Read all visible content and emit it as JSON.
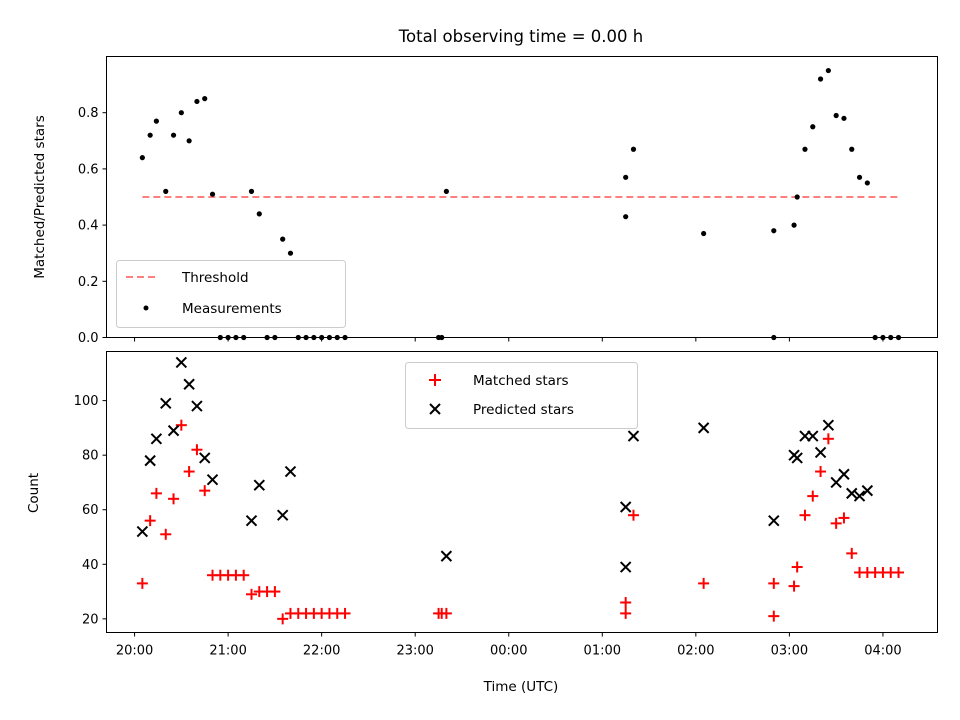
{
  "figure": {
    "title": "Total observing time = 0.00 h"
  },
  "chart_data": [
    {
      "type": "scatter",
      "ylabel": "Matched/Predicted stars",
      "xlabel": "",
      "xlim": [
        "19:42",
        "04:35"
      ],
      "ylim": [
        0,
        1.0
      ],
      "yticks": [
        0.0,
        0.2,
        0.4,
        0.6,
        0.8
      ],
      "xticks": [
        "20:00",
        "21:00",
        "22:00",
        "23:00",
        "00:00",
        "01:00",
        "02:00",
        "03:00",
        "04:00"
      ],
      "grid": false,
      "legend_position": "lower-left",
      "threshold": {
        "name": "Threshold",
        "value": 0.5,
        "x_range": [
          "20:05",
          "04:10"
        ],
        "color": "#ff7f7f",
        "style": "dashed"
      },
      "series": [
        {
          "name": "Measurements",
          "marker": "dot",
          "color": "#000000",
          "points": [
            [
              "20:05",
              0.64
            ],
            [
              "20:10",
              0.72
            ],
            [
              "20:14",
              0.77
            ],
            [
              "20:20",
              0.52
            ],
            [
              "20:25",
              0.72
            ],
            [
              "20:30",
              0.8
            ],
            [
              "20:35",
              0.7
            ],
            [
              "20:40",
              0.84
            ],
            [
              "20:45",
              0.85
            ],
            [
              "20:50",
              0.51
            ],
            [
              "20:55",
              0.0
            ],
            [
              "21:00",
              0.0
            ],
            [
              "21:05",
              0.0
            ],
            [
              "21:10",
              0.0
            ],
            [
              "21:15",
              0.52
            ],
            [
              "21:20",
              0.44
            ],
            [
              "21:25",
              0.0
            ],
            [
              "21:30",
              0.0
            ],
            [
              "21:35",
              0.35
            ],
            [
              "21:40",
              0.3
            ],
            [
              "21:45",
              0.0
            ],
            [
              "21:50",
              0.0
            ],
            [
              "21:55",
              0.0
            ],
            [
              "22:00",
              0.0
            ],
            [
              "22:05",
              0.0
            ],
            [
              "22:10",
              0.0
            ],
            [
              "22:15",
              0.0
            ],
            [
              "23:15",
              0.0
            ],
            [
              "23:17",
              0.0
            ],
            [
              "23:20",
              0.52
            ],
            [
              "01:15",
              0.57
            ],
            [
              "01:15",
              0.43
            ],
            [
              "01:20",
              0.67
            ],
            [
              "02:05",
              0.37
            ],
            [
              "02:50",
              0.38
            ],
            [
              "02:50",
              0.0
            ],
            [
              "03:03",
              0.4
            ],
            [
              "03:05",
              0.5
            ],
            [
              "03:10",
              0.67
            ],
            [
              "03:15",
              0.75
            ],
            [
              "03:20",
              0.92
            ],
            [
              "03:25",
              0.95
            ],
            [
              "03:30",
              0.79
            ],
            [
              "03:35",
              0.78
            ],
            [
              "03:40",
              0.67
            ],
            [
              "03:45",
              0.57
            ],
            [
              "03:50",
              0.55
            ],
            [
              "03:55",
              0.0
            ],
            [
              "04:00",
              0.0
            ],
            [
              "04:05",
              0.0
            ],
            [
              "04:10",
              0.0
            ]
          ]
        }
      ]
    },
    {
      "type": "scatter",
      "ylabel": "Count",
      "xlabel": "Time (UTC)",
      "xlim": [
        "19:42",
        "04:35"
      ],
      "ylim": [
        15,
        118
      ],
      "yticks": [
        20,
        40,
        60,
        80,
        100
      ],
      "xticks": [
        "20:00",
        "21:00",
        "22:00",
        "23:00",
        "00:00",
        "01:00",
        "02:00",
        "03:00",
        "04:00"
      ],
      "grid": false,
      "legend_position": "top-center",
      "series": [
        {
          "name": "Matched stars",
          "marker": "plus",
          "color": "#ff0000",
          "points": [
            [
              "20:05",
              33
            ],
            [
              "20:10",
              56
            ],
            [
              "20:14",
              66
            ],
            [
              "20:20",
              51
            ],
            [
              "20:25",
              64
            ],
            [
              "20:30",
              91
            ],
            [
              "20:35",
              74
            ],
            [
              "20:40",
              82
            ],
            [
              "20:45",
              67
            ],
            [
              "20:50",
              36
            ],
            [
              "20:55",
              36
            ],
            [
              "21:00",
              36
            ],
            [
              "21:05",
              36
            ],
            [
              "21:10",
              36
            ],
            [
              "21:15",
              29
            ],
            [
              "21:20",
              30
            ],
            [
              "21:25",
              30
            ],
            [
              "21:30",
              30
            ],
            [
              "21:35",
              20
            ],
            [
              "21:40",
              22
            ],
            [
              "21:45",
              22
            ],
            [
              "21:50",
              22
            ],
            [
              "21:55",
              22
            ],
            [
              "22:00",
              22
            ],
            [
              "22:05",
              22
            ],
            [
              "22:10",
              22
            ],
            [
              "22:15",
              22
            ],
            [
              "23:15",
              22
            ],
            [
              "23:17",
              22
            ],
            [
              "23:20",
              22
            ],
            [
              "01:15",
              26
            ],
            [
              "01:15",
              22
            ],
            [
              "01:20",
              58
            ],
            [
              "02:05",
              33
            ],
            [
              "02:50",
              33
            ],
            [
              "02:50",
              21
            ],
            [
              "03:03",
              32
            ],
            [
              "03:05",
              39
            ],
            [
              "03:10",
              58
            ],
            [
              "03:15",
              65
            ],
            [
              "03:20",
              74
            ],
            [
              "03:25",
              86
            ],
            [
              "03:30",
              55
            ],
            [
              "03:35",
              57
            ],
            [
              "03:40",
              44
            ],
            [
              "03:45",
              37
            ],
            [
              "03:50",
              37
            ],
            [
              "03:55",
              37
            ],
            [
              "04:00",
              37
            ],
            [
              "04:05",
              37
            ],
            [
              "04:10",
              37
            ]
          ]
        },
        {
          "name": "Predicted stars",
          "marker": "x",
          "color": "#000000",
          "points": [
            [
              "20:05",
              52
            ],
            [
              "20:10",
              78
            ],
            [
              "20:14",
              86
            ],
            [
              "20:20",
              99
            ],
            [
              "20:25",
              89
            ],
            [
              "20:30",
              114
            ],
            [
              "20:35",
              106
            ],
            [
              "20:40",
              98
            ],
            [
              "20:45",
              79
            ],
            [
              "20:50",
              71
            ],
            [
              "21:15",
              56
            ],
            [
              "21:20",
              69
            ],
            [
              "21:35",
              58
            ],
            [
              "21:40",
              74
            ],
            [
              "23:20",
              43
            ],
            [
              "01:15",
              61
            ],
            [
              "01:15",
              39
            ],
            [
              "01:20",
              87
            ],
            [
              "02:05",
              90
            ],
            [
              "02:50",
              56
            ],
            [
              "03:03",
              80
            ],
            [
              "03:05",
              79
            ],
            [
              "03:10",
              87
            ],
            [
              "03:15",
              87
            ],
            [
              "03:20",
              81
            ],
            [
              "03:25",
              91
            ],
            [
              "03:30",
              70
            ],
            [
              "03:35",
              73
            ],
            [
              "03:40",
              66
            ],
            [
              "03:45",
              65
            ],
            [
              "03:50",
              67
            ]
          ]
        }
      ]
    }
  ]
}
